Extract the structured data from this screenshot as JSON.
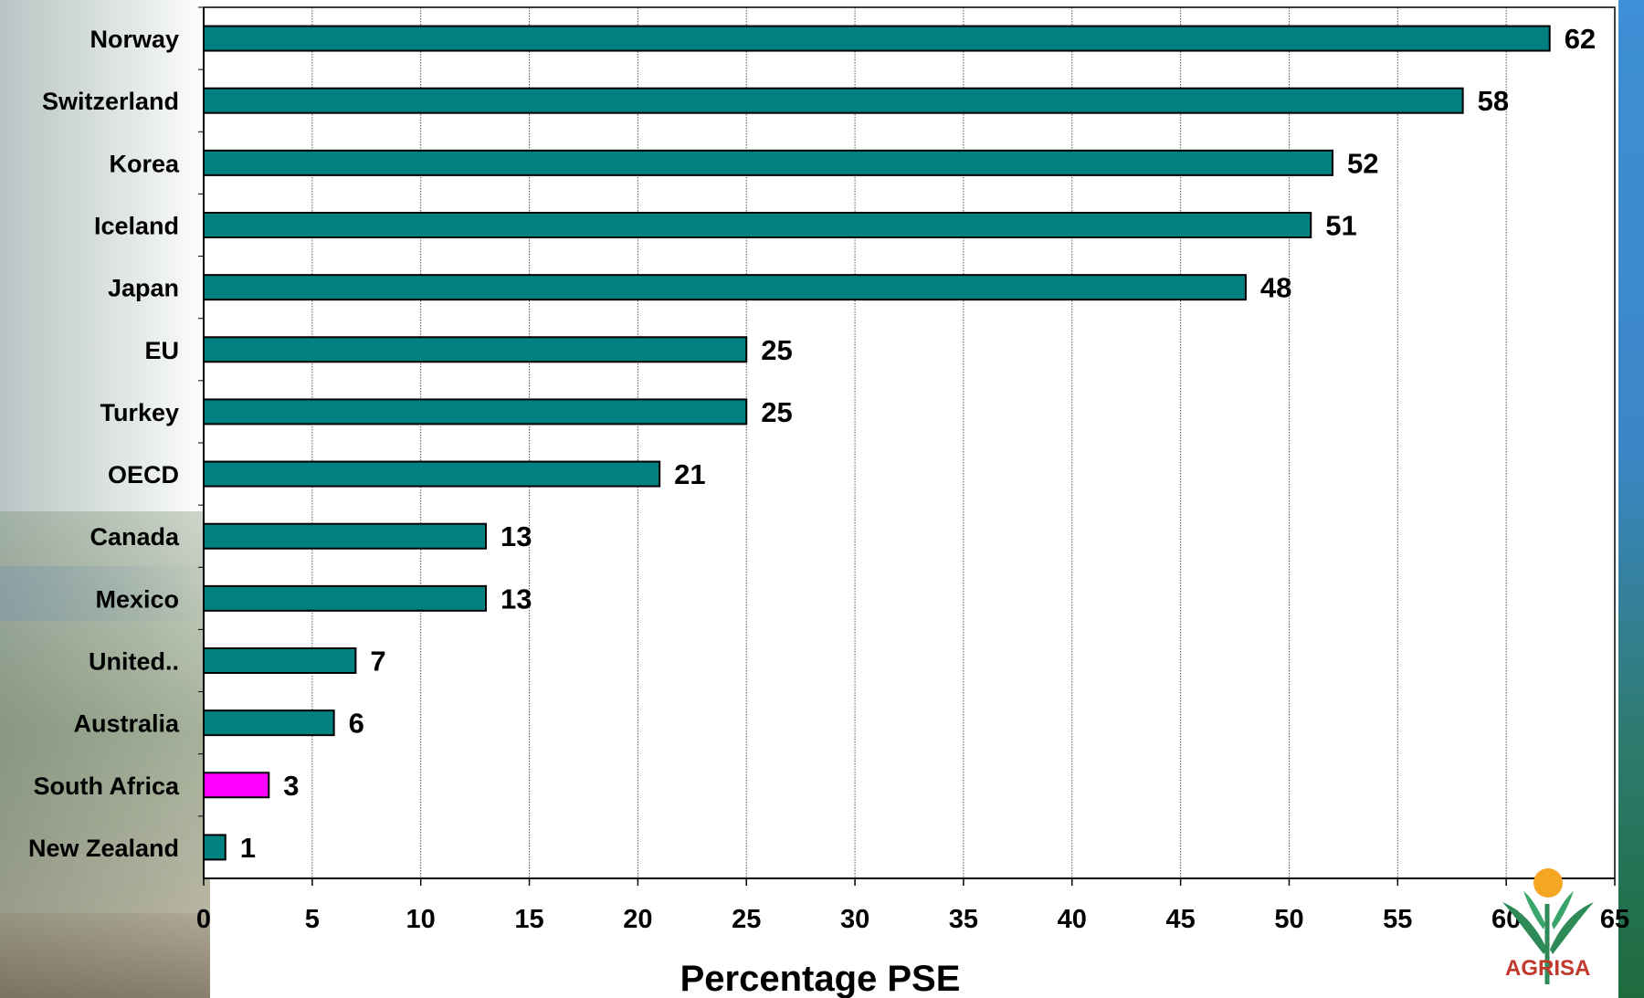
{
  "chart_data": {
    "type": "bar",
    "orientation": "horizontal",
    "categories": [
      "Norway",
      "Switzerland",
      "Korea",
      "Iceland",
      "Japan",
      "EU",
      "Turkey",
      "OECD",
      "Canada",
      "Mexico",
      "United..",
      "Australia",
      "South Africa",
      "New Zealand"
    ],
    "values": [
      62,
      58,
      52,
      51,
      48,
      25,
      25,
      21,
      13,
      13,
      7,
      6,
      3,
      1
    ],
    "highlight_category": "South Africa",
    "bar_color": "#008080",
    "highlight_color": "#FF00FF",
    "xlabel": "Percentage PSE",
    "xlim": [
      0,
      65
    ],
    "xticks": [
      0,
      5,
      10,
      15,
      20,
      25,
      30,
      35,
      40,
      45,
      50,
      55,
      60,
      65
    ],
    "grid": "vertical",
    "data_labels": true
  },
  "logo": {
    "text_left": "AGRI",
    "text_right": "SA",
    "colors": {
      "sun": "#F5A623",
      "leaves": "#2E8B57",
      "text": "#C0392B"
    }
  }
}
